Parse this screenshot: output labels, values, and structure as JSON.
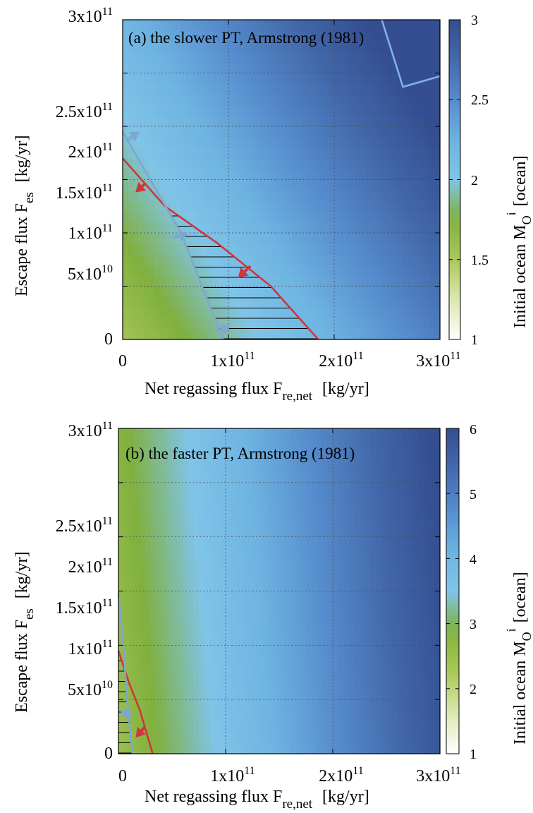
{
  "chart_data": [
    {
      "type": "heatmap",
      "title": "(a) the slower PT, Armstrong (1981)",
      "xlabel": "Net regassing flux F",
      "xlabel_sub": "re,net",
      "xlabel_unit": "[kg/yr]",
      "ylabel": "Escape flux F",
      "ylabel_sub": "es",
      "ylabel_unit": "[kg/yr]",
      "xlim": [
        0,
        300000000000
      ],
      "ylim": [
        0,
        300000000000
      ],
      "x_ticks": [
        0,
        100000000000,
        200000000000,
        300000000000
      ],
      "y_ticks": [
        0,
        50000000000,
        100000000000,
        150000000000,
        200000000000,
        250000000000,
        300000000000
      ],
      "x_tick_labels": [
        {
          "base": "0",
          "exp": ""
        },
        {
          "base": "1x10",
          "exp": "11"
        },
        {
          "base": "2x10",
          "exp": "11"
        },
        {
          "base": "3x10",
          "exp": "11"
        }
      ],
      "y_tick_labels": [
        {
          "base": "0",
          "exp": ""
        },
        {
          "base": "5x10",
          "exp": "10"
        },
        {
          "base": "1x10",
          "exp": "11"
        },
        {
          "base": "1.5x10",
          "exp": "11"
        },
        {
          "base": "2x10",
          "exp": "11"
        },
        {
          "base": "2.5x10",
          "exp": "11"
        },
        {
          "base": "3x10",
          "exp": "11"
        }
      ],
      "grid": true,
      "colorbar": {
        "label": "Initial ocean M",
        "label_sub": "O",
        "label_sup": "i",
        "label_unit": "[ocean]",
        "range": [
          1,
          3
        ],
        "ticks": [
          "1",
          "1.5",
          "2",
          "2.5",
          "3"
        ]
      },
      "color_field": {
        "at_x0": 1.55,
        "gradient_x": 1.05,
        "gradient_y": 0.65
      },
      "series": [
        {
          "color": "#d0363a",
          "points": [
            [
              0,
              170000000000
            ],
            [
              40000000000,
              125000000000
            ],
            [
              90000000000,
              90000000000
            ],
            [
              140000000000,
              50000000000
            ],
            [
              185000000000,
              0
            ]
          ]
        },
        {
          "color": "#7fa6d2",
          "points": [
            [
              0,
              195000000000
            ],
            [
              55000000000,
              100000000000
            ],
            [
              95000000000,
              0
            ]
          ]
        },
        {
          "color": "#7fb3e0",
          "points": [
            [
              245000000000,
              300000000000
            ],
            [
              265000000000,
              237000000000
            ],
            [
              300000000000,
              247000000000
            ]
          ]
        }
      ],
      "hatched_region": [
        [
          42000000000,
          123000000000
        ],
        [
          55000000000,
          100000000000
        ],
        [
          95000000000,
          0
        ],
        [
          185000000000,
          0
        ],
        [
          140000000000,
          50000000000
        ],
        [
          90000000000,
          90000000000
        ]
      ],
      "arrows": [
        {
          "color": "#d0363a",
          "from": [
            20000000000,
            145000000000
          ],
          "to": [
            12000000000,
            138000000000
          ]
        },
        {
          "color": "#d0363a",
          "from": [
            120000000000,
            68000000000
          ],
          "to": [
            109000000000,
            58000000000
          ]
        },
        {
          "color": "#7fa6d2",
          "from": [
            4000000000,
            187000000000
          ],
          "to": [
            16000000000,
            195000000000
          ]
        },
        {
          "color": "#7fa6d2",
          "from": [
            49000000000,
            96000000000
          ],
          "to": [
            62000000000,
            100000000000
          ]
        },
        {
          "color": "#7fa6d2",
          "from": [
            89000000000,
            8000000000
          ],
          "to": [
            102000000000,
            12000000000
          ]
        }
      ]
    },
    {
      "type": "heatmap",
      "title": "(b) the faster PT, Armstrong (1981)",
      "xlabel": "Net regassing flux F",
      "xlabel_sub": "re,net",
      "xlabel_unit": "[kg/yr]",
      "ylabel": "Escape flux F",
      "ylabel_sub": "es",
      "ylabel_unit": "[kg/yr]",
      "xlim": [
        0,
        300000000000
      ],
      "ylim": [
        0,
        300000000000
      ],
      "x_ticks": [
        0,
        100000000000,
        200000000000,
        300000000000
      ],
      "y_ticks": [
        0,
        50000000000,
        100000000000,
        150000000000,
        200000000000,
        250000000000,
        300000000000
      ],
      "x_tick_labels": [
        {
          "base": "0",
          "exp": ""
        },
        {
          "base": "1x10",
          "exp": "11"
        },
        {
          "base": "2x10",
          "exp": "11"
        },
        {
          "base": "3x10",
          "exp": "11"
        }
      ],
      "y_tick_labels": [
        {
          "base": "0",
          "exp": ""
        },
        {
          "base": "5x10",
          "exp": "10"
        },
        {
          "base": "1x10",
          "exp": "11"
        },
        {
          "base": "1.5x10",
          "exp": "11"
        },
        {
          "base": "2x10",
          "exp": "11"
        },
        {
          "base": "2.5x10",
          "exp": "11"
        },
        {
          "base": "3x10",
          "exp": "11"
        }
      ],
      "grid": true,
      "colorbar": {
        "label": "Initial ocean M",
        "label_sub": "O",
        "label_sup": "i",
        "label_unit": "[ocean]",
        "range": [
          1,
          6
        ],
        "ticks": [
          "1",
          "2",
          "3",
          "4",
          "5",
          "6"
        ]
      },
      "color_field": {
        "at_x0": 2.5,
        "gradient_x": 3.3,
        "gradient_y": 0.3
      },
      "series": [
        {
          "color": "#d0363a",
          "points": [
            [
              0,
              95000000000
            ],
            [
              10000000000,
              65000000000
            ],
            [
              20000000000,
              40000000000
            ],
            [
              32000000000,
              0
            ]
          ]
        },
        {
          "color": "#7fa6d2",
          "points": [
            [
              0,
              148000000000
            ],
            [
              5000000000,
              95000000000
            ],
            [
              8000000000,
              50000000000
            ],
            [
              13000000000,
              0
            ]
          ]
        }
      ],
      "hatched_region": [
        [
          0,
          95000000000
        ],
        [
          6000000000,
          75000000000
        ],
        [
          11000000000,
          30000000000
        ],
        [
          13000000000,
          0
        ],
        [
          0,
          0
        ]
      ],
      "arrows": [
        {
          "color": "#d0363a",
          "from": [
            24000000000,
            24000000000
          ],
          "to": [
            16000000000,
            15000000000
          ]
        },
        {
          "color": "#7fa6d2",
          "from": [
            13000000000,
            36000000000
          ],
          "to": [
            1000000000,
            40000000000
          ]
        }
      ]
    }
  ]
}
